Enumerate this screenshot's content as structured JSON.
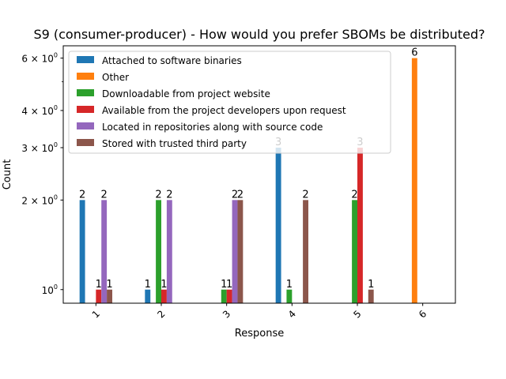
{
  "chart_data": {
    "type": "bar",
    "title": "S9 (consumer-producer) - How would you prefer SBOMs be distributed?",
    "xlabel": "Response",
    "ylabel": "Count",
    "yscale": "log",
    "ylim": [
      0.9,
      6.6
    ],
    "y_major_ticks": [
      {
        "value": 1,
        "base": "10",
        "exp": "0"
      },
      {
        "value": 2,
        "base": "2 × 10",
        "exp": "0"
      },
      {
        "value": 3,
        "base": "3 × 10",
        "exp": "0"
      },
      {
        "value": 4,
        "base": "4 × 10",
        "exp": "0"
      },
      {
        "value": 6,
        "base": "6 × 10",
        "exp": "0"
      }
    ],
    "y_minor_ticks": [
      5
    ],
    "categories": [
      "1",
      "2",
      "3",
      "4",
      "5",
      "6"
    ],
    "legend_position": "upper-left",
    "grid": false,
    "series": [
      {
        "name": "Attached to software binaries",
        "color": "#1f77b4",
        "values": [
          2,
          1,
          null,
          3,
          null,
          null
        ]
      },
      {
        "name": "Other",
        "color": "#ff7f0e",
        "values": [
          null,
          null,
          null,
          null,
          null,
          6
        ]
      },
      {
        "name": "Downloadable from project website",
        "color": "#2ca02c",
        "values": [
          null,
          2,
          1,
          1,
          2,
          null
        ]
      },
      {
        "name": "Available from the project developers upon request",
        "color": "#d62728",
        "values": [
          1,
          1,
          1,
          null,
          3,
          null
        ]
      },
      {
        "name": "Located in repositories along with source code",
        "color": "#9467bd",
        "values": [
          2,
          2,
          2,
          null,
          null,
          null
        ]
      },
      {
        "name": "Stored with trusted third party",
        "color": "#8c564b",
        "values": [
          1,
          null,
          2,
          2,
          1,
          null
        ]
      }
    ]
  }
}
